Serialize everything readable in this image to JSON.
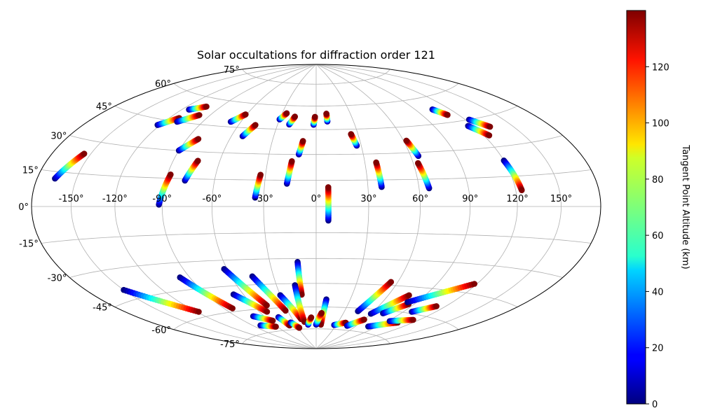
{
  "chart_data": {
    "type": "scatter",
    "projection": "hammer-aitoff",
    "title": "Solar occultations for diffraction order 121",
    "lon_ticks": [
      "-150°",
      "-120°",
      "-90°",
      "-60°",
      "-30°",
      "0°",
      "30°",
      "60°",
      "90°",
      "120°",
      "150°"
    ],
    "lon_tick_values": [
      -150,
      -120,
      -90,
      -60,
      -30,
      0,
      30,
      60,
      90,
      120,
      150
    ],
    "lat_ticks": [
      "75°",
      "60°",
      "45°",
      "30°",
      "15°",
      "0°",
      "-15°",
      "-30°",
      "-45°",
      "-60°",
      "-75°"
    ],
    "lat_tick_values": [
      75,
      60,
      45,
      30,
      15,
      0,
      -15,
      -30,
      -45,
      -60,
      -75
    ],
    "grid": true,
    "colorbar": {
      "label": "Tangent Point Altitude (km)",
      "colormap": "jet",
      "range": [
        0,
        140
      ],
      "ticks": [
        "0",
        "20",
        "40",
        "60",
        "80",
        "100",
        "120"
      ],
      "tick_values": [
        0,
        20,
        40,
        60,
        80,
        100,
        120
      ]
    },
    "series": [
      {
        "lon_start": -166,
        "lat_start": 12,
        "lon_end": -155,
        "lat_end": 24
      },
      {
        "lon_start": -122,
        "lat_start": 42,
        "lon_end": -112,
        "lat_end": 47
      },
      {
        "lon_start": -114,
        "lat_start": 52,
        "lon_end": -103,
        "lat_end": 55
      },
      {
        "lon_start": -110,
        "lat_start": 45,
        "lon_end": -99,
        "lat_end": 50
      },
      {
        "lon_start": -90,
        "lat_start": 30,
        "lon_end": -82,
        "lat_end": 37
      },
      {
        "lon_start": -92,
        "lat_start": 1,
        "lon_end": -88,
        "lat_end": 17
      },
      {
        "lon_start": -78,
        "lat_start": 14,
        "lon_end": -74,
        "lat_end": 25
      },
      {
        "lon_start": -68,
        "lat_start": 48,
        "lon_end": -61,
        "lat_end": 53
      },
      {
        "lon_start": -52,
        "lat_start": 40,
        "lon_end": -47,
        "lat_end": 47
      },
      {
        "lon_start": -35,
        "lat_start": 5,
        "lon_end": -33,
        "lat_end": 18
      },
      {
        "lon_start": -30,
        "lat_start": 51,
        "lon_end": -26,
        "lat_end": 55
      },
      {
        "lon_start": -21,
        "lat_start": 48,
        "lon_end": -18,
        "lat_end": 53
      },
      {
        "lon_start": -17,
        "lat_start": 13,
        "lon_end": -15,
        "lat_end": 26
      },
      {
        "lon_start": -11,
        "lat_start": 30,
        "lon_end": -9,
        "lat_end": 38
      },
      {
        "lon_start": -2,
        "lat_start": 48,
        "lon_end": -1,
        "lat_end": 53
      },
      {
        "lon_start": 7,
        "lat_start": -8,
        "lon_end": 7,
        "lat_end": 11
      },
      {
        "lon_start": 9,
        "lat_start": 50,
        "lon_end": 9,
        "lat_end": 55
      },
      {
        "lon_start": 27,
        "lat_start": 35,
        "lon_end": 25,
        "lat_end": 42
      },
      {
        "lon_start": 38,
        "lat_start": 11,
        "lon_end": 37,
        "lat_end": 25
      },
      {
        "lon_start": 65,
        "lat_start": 28,
        "lon_end": 62,
        "lat_end": 37
      },
      {
        "lon_start": 66,
        "lat_start": 10,
        "lon_end": 63,
        "lat_end": 24
      },
      {
        "lon_start": 105,
        "lat_start": 53,
        "lon_end": 111,
        "lat_end": 49
      },
      {
        "lon_start": 116,
        "lat_start": 42,
        "lon_end": 124,
        "lat_end": 36
      },
      {
        "lon_start": 123,
        "lat_start": 45,
        "lon_end": 132,
        "lat_end": 40
      },
      {
        "lon_start": 120,
        "lat_start": 23,
        "lon_end": 124,
        "lat_end": 8
      },
      {
        "lon_start": -150,
        "lat_start": -40,
        "lon_end": -118,
        "lat_end": -57
      },
      {
        "lon_start": -97,
        "lat_start": -38,
        "lon_end": -82,
        "lat_end": -58
      },
      {
        "lon_start": -80,
        "lat_start": -70,
        "lon_end": -62,
        "lat_end": -72
      },
      {
        "lon_start": -72,
        "lat_start": -64,
        "lon_end": -56,
        "lat_end": -68
      },
      {
        "lon_start": -68,
        "lat_start": -50,
        "lon_end": -52,
        "lat_end": -62
      },
      {
        "lon_start": -62,
        "lat_start": -35,
        "lon_end": -47,
        "lat_end": -58
      },
      {
        "lon_start": -45,
        "lat_start": -40,
        "lon_end": -32,
        "lat_end": -62
      },
      {
        "lon_start": -45,
        "lat_start": -66,
        "lon_end": -40,
        "lat_end": -72
      },
      {
        "lon_start": -30,
        "lat_start": -52,
        "lon_end": -19,
        "lat_end": -68
      },
      {
        "lon_start": -35,
        "lat_start": -70,
        "lon_end": -28,
        "lat_end": -74
      },
      {
        "lon_start": -12,
        "lat_start": -32,
        "lon_end": -12,
        "lat_end": -52
      },
      {
        "lon_start": -16,
        "lat_start": -46,
        "lon_end": -16,
        "lat_end": -70
      },
      {
        "lon_start": -12,
        "lat_start": -72,
        "lon_end": -6,
        "lat_end": -67
      },
      {
        "lon_start": 9,
        "lat_start": -55,
        "lon_end": 7,
        "lat_end": -72
      },
      {
        "lon_start": 0,
        "lat_start": -72,
        "lon_end": 6,
        "lat_end": -64
      },
      {
        "lon_start": 27,
        "lat_start": -72,
        "lon_end": 41,
        "lat_end": -70
      },
      {
        "lon_start": 44,
        "lat_start": -62,
        "lon_end": 55,
        "lat_end": -43
      },
      {
        "lon_start": 47,
        "lat_start": -72,
        "lon_end": 60,
        "lat_end": -67
      },
      {
        "lon_start": 60,
        "lat_start": -63,
        "lon_end": 77,
        "lat_end": -50
      },
      {
        "lon_start": 72,
        "lat_start": -62,
        "lon_end": 85,
        "lat_end": -55
      },
      {
        "lon_start": 82,
        "lat_start": -54,
        "lon_end": 118,
        "lat_end": -40
      },
      {
        "lon_start": 78,
        "lat_start": -71,
        "lon_end": 104,
        "lat_end": -66
      },
      {
        "lon_start": 92,
        "lat_start": -66,
        "lon_end": 114,
        "lat_end": -63
      },
      {
        "lon_start": 98,
        "lat_start": -59,
        "lon_end": 112,
        "lat_end": -54
      }
    ]
  }
}
